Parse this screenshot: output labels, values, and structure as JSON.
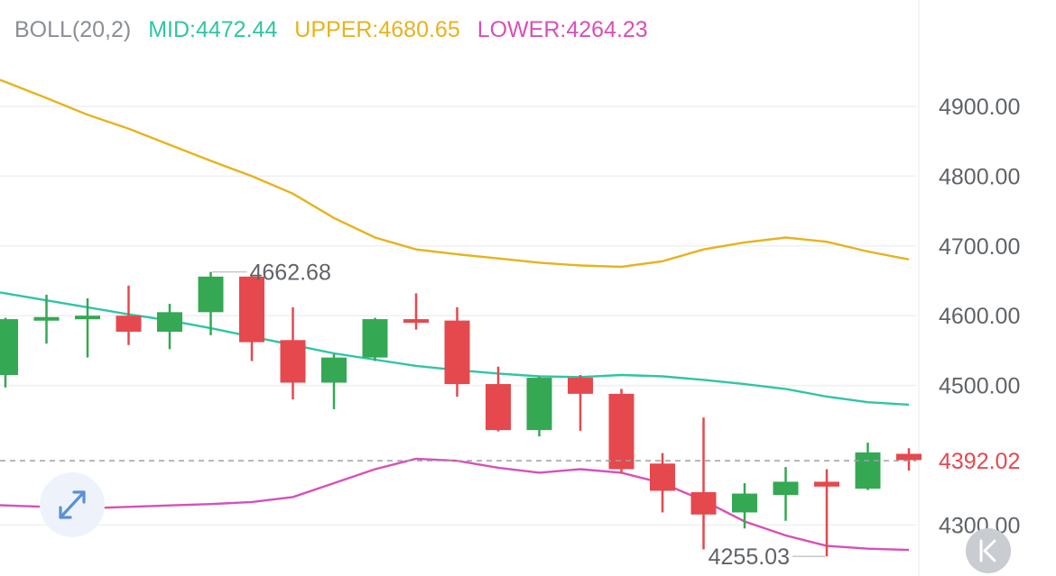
{
  "indicator": {
    "name": "BOLL(20,2)",
    "mid_label": "MID:4472.44",
    "upper_label": "UPPER:4680.65",
    "lower_label": "LOWER:4264.23",
    "colors": {
      "name": "#8a8f96",
      "mid": "#2fc5a3",
      "upper": "#e8b21c",
      "lower": "#d94fb8"
    }
  },
  "chart_data": {
    "type": "candlestick",
    "y_ticks": [
      "4900.00",
      "4800.00",
      "4700.00",
      "4600.00",
      "4500.00",
      "4300.00"
    ],
    "y_tick_values": [
      4900,
      4800,
      4700,
      4600,
      4500,
      4300
    ],
    "ylim": [
      4230,
      5000
    ],
    "current_price": 4392.02,
    "current_price_label": "4392.02",
    "max_annotation": {
      "value": 4662.68,
      "label": "4662.68",
      "index": 5
    },
    "min_annotation": {
      "value": 4255.03,
      "label": "4255.03",
      "index": 20
    },
    "up_color": "#34a853",
    "down_color": "#e5484d",
    "grid": true,
    "candles": [
      {
        "open": 4515,
        "close": 4595,
        "high": 4597,
        "low": 4497
      },
      {
        "open": 4593,
        "close": 4598,
        "high": 4630,
        "low": 4560
      },
      {
        "open": 4597,
        "close": 4600,
        "high": 4625,
        "low": 4540
      },
      {
        "open": 4600,
        "close": 4577,
        "high": 4643,
        "low": 4558
      },
      {
        "open": 4577,
        "close": 4605,
        "high": 4617,
        "low": 4552
      },
      {
        "open": 4605,
        "close": 4656,
        "high": 4662.68,
        "low": 4572
      },
      {
        "open": 4656,
        "close": 4562,
        "high": 4658,
        "low": 4535
      },
      {
        "open": 4565,
        "close": 4504,
        "high": 4612,
        "low": 4480
      },
      {
        "open": 4504,
        "close": 4540,
        "high": 4545,
        "low": 4466
      },
      {
        "open": 4540,
        "close": 4595,
        "high": 4597,
        "low": 4535
      },
      {
        "open": 4595,
        "close": 4593,
        "high": 4632,
        "low": 4580
      },
      {
        "open": 4593,
        "close": 4502,
        "high": 4612,
        "low": 4484
      },
      {
        "open": 4502,
        "close": 4436,
        "high": 4527,
        "low": 4434
      },
      {
        "open": 4436,
        "close": 4511,
        "high": 4513,
        "low": 4427
      },
      {
        "open": 4511,
        "close": 4488,
        "high": 4515,
        "low": 4435
      },
      {
        "open": 4488,
        "close": 4380,
        "high": 4495,
        "low": 4374
      },
      {
        "open": 4388,
        "close": 4349,
        "high": 4403,
        "low": 4318
      },
      {
        "open": 4347,
        "close": 4315,
        "high": 4454,
        "low": 4265
      },
      {
        "open": 4318,
        "close": 4345,
        "high": 4360,
        "low": 4295
      },
      {
        "open": 4343,
        "close": 4362,
        "high": 4383,
        "low": 4306
      },
      {
        "open": 4362,
        "close": 4355,
        "high": 4380,
        "low": 4255.03
      },
      {
        "open": 4352,
        "close": 4404,
        "high": 4418,
        "low": 4350
      },
      {
        "open": 4402,
        "close": 4393,
        "high": 4410,
        "low": 4378
      }
    ],
    "upper_band": [
      4935,
      4912,
      4888,
      4868,
      4845,
      4822,
      4800,
      4775,
      4740,
      4712,
      4695,
      4688,
      4682,
      4676,
      4672,
      4670,
      4678,
      4695,
      4705,
      4712,
      4706,
      4692,
      4680.65
    ],
    "mid_band": [
      4632,
      4622,
      4612,
      4602,
      4593,
      4582,
      4570,
      4558,
      4546,
      4537,
      4528,
      4522,
      4517,
      4513,
      4512,
      4515,
      4513,
      4508,
      4502,
      4495,
      4484,
      4476,
      4472.44
    ],
    "lower_band": [
      4328,
      4326,
      4324,
      4326,
      4328,
      4330,
      4333,
      4340,
      4360,
      4380,
      4395,
      4392,
      4382,
      4375,
      4380,
      4375,
      4360,
      4335,
      4305,
      4285,
      4270,
      4266,
      4264.23
    ]
  }
}
